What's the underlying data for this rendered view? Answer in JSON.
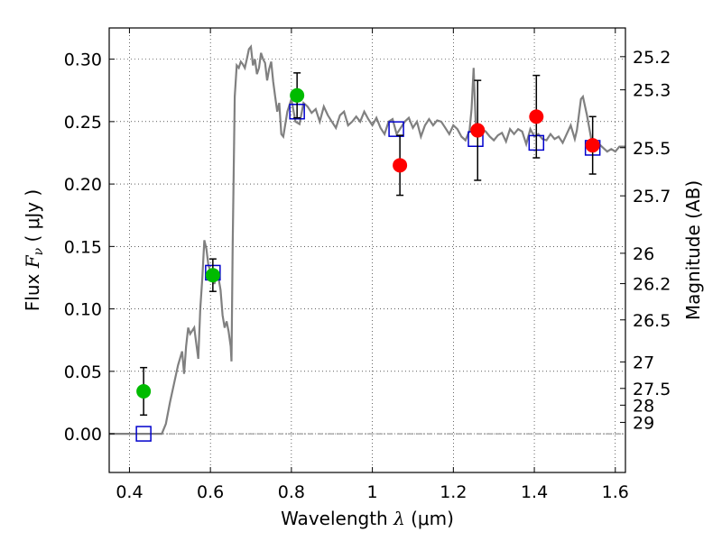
{
  "chart_data": {
    "type": "scatter",
    "xlabel": {
      "prefix": "Wavelength  ",
      "symbol": "λ",
      "unit": " (μm)"
    },
    "ylabel": {
      "prefix": "Flux  ",
      "symbol": "F",
      "subscript": "ν",
      "unit": "  ( μJy )"
    },
    "y2label": "Magnitude (AB)",
    "xlim": [
      0.35,
      1.625
    ],
    "ylim": [
      -0.031,
      0.325
    ],
    "grid": true,
    "x_ticks": [
      {
        "value": 0.4,
        "label": "0.4"
      },
      {
        "value": 0.6,
        "label": "0.6"
      },
      {
        "value": 0.8,
        "label": "0.8"
      },
      {
        "value": 1.0,
        "label": "1"
      },
      {
        "value": 1.2,
        "label": "1.2"
      },
      {
        "value": 1.4,
        "label": "1.4"
      },
      {
        "value": 1.6,
        "label": "1.6"
      }
    ],
    "y_ticks": [
      {
        "value": 0.0,
        "label": "0.00"
      },
      {
        "value": 0.05,
        "label": "0.05"
      },
      {
        "value": 0.1,
        "label": "0.10"
      },
      {
        "value": 0.15,
        "label": "0.15"
      },
      {
        "value": 0.2,
        "label": "0.20"
      },
      {
        "value": 0.25,
        "label": "0.25"
      },
      {
        "value": 0.3,
        "label": "0.30"
      }
    ],
    "mag_ticks": [
      "25.2",
      "25.3",
      "25.5",
      "25.7",
      "26",
      "26.2",
      "26.5",
      "27",
      "27.5",
      "28",
      "29"
    ],
    "zero_point_jy": 3631,
    "series": [
      {
        "role": "template_spectrum",
        "type": "line",
        "color": "#808080",
        "x": [
          0.35,
          0.48,
          0.49,
          0.5,
          0.51,
          0.52,
          0.53,
          0.535,
          0.54,
          0.545,
          0.55,
          0.56,
          0.57,
          0.575,
          0.58,
          0.585,
          0.59,
          0.595,
          0.6,
          0.605,
          0.61,
          0.615,
          0.62,
          0.625,
          0.63,
          0.635,
          0.64,
          0.645,
          0.65,
          0.652,
          0.655,
          0.66,
          0.665,
          0.67,
          0.675,
          0.68,
          0.685,
          0.69,
          0.695,
          0.7,
          0.705,
          0.71,
          0.715,
          0.72,
          0.725,
          0.73,
          0.735,
          0.74,
          0.745,
          0.75,
          0.755,
          0.76,
          0.765,
          0.77,
          0.775,
          0.78,
          0.79,
          0.8,
          0.81,
          0.82,
          0.83,
          0.84,
          0.85,
          0.86,
          0.87,
          0.88,
          0.89,
          0.9,
          0.91,
          0.92,
          0.93,
          0.94,
          0.95,
          0.96,
          0.97,
          0.98,
          0.99,
          1.0,
          1.01,
          1.02,
          1.03,
          1.04,
          1.05,
          1.06,
          1.07,
          1.08,
          1.09,
          1.1,
          1.11,
          1.12,
          1.13,
          1.14,
          1.15,
          1.16,
          1.17,
          1.18,
          1.19,
          1.2,
          1.21,
          1.22,
          1.23,
          1.24,
          1.245,
          1.25,
          1.255,
          1.26,
          1.27,
          1.28,
          1.29,
          1.3,
          1.31,
          1.32,
          1.33,
          1.34,
          1.35,
          1.36,
          1.37,
          1.38,
          1.39,
          1.4,
          1.41,
          1.42,
          1.43,
          1.44,
          1.45,
          1.46,
          1.47,
          1.48,
          1.49,
          1.5,
          1.505,
          1.51,
          1.515,
          1.52,
          1.53,
          1.54,
          1.55,
          1.56,
          1.57,
          1.58,
          1.59,
          1.6,
          1.61,
          1.625
        ],
        "y": [
          0.0,
          0.0,
          0.008,
          0.025,
          0.04,
          0.055,
          0.066,
          0.048,
          0.07,
          0.085,
          0.08,
          0.085,
          0.06,
          0.1,
          0.125,
          0.155,
          0.148,
          0.135,
          0.13,
          0.125,
          0.12,
          0.13,
          0.125,
          0.115,
          0.095,
          0.085,
          0.09,
          0.082,
          0.07,
          0.058,
          0.15,
          0.27,
          0.295,
          0.293,
          0.298,
          0.296,
          0.293,
          0.3,
          0.308,
          0.31,
          0.295,
          0.3,
          0.288,
          0.293,
          0.305,
          0.3,
          0.297,
          0.283,
          0.292,
          0.298,
          0.282,
          0.27,
          0.258,
          0.265,
          0.24,
          0.238,
          0.258,
          0.268,
          0.25,
          0.248,
          0.265,
          0.262,
          0.257,
          0.26,
          0.25,
          0.262,
          0.255,
          0.25,
          0.245,
          0.255,
          0.258,
          0.247,
          0.25,
          0.254,
          0.25,
          0.258,
          0.252,
          0.247,
          0.253,
          0.245,
          0.24,
          0.25,
          0.252,
          0.24,
          0.245,
          0.25,
          0.253,
          0.245,
          0.25,
          0.238,
          0.247,
          0.252,
          0.247,
          0.251,
          0.25,
          0.245,
          0.24,
          0.247,
          0.244,
          0.238,
          0.235,
          0.243,
          0.26,
          0.293,
          0.25,
          0.24,
          0.244,
          0.242,
          0.238,
          0.235,
          0.239,
          0.241,
          0.234,
          0.244,
          0.24,
          0.244,
          0.242,
          0.232,
          0.244,
          0.238,
          0.24,
          0.236,
          0.235,
          0.24,
          0.236,
          0.238,
          0.233,
          0.24,
          0.247,
          0.236,
          0.243,
          0.255,
          0.268,
          0.27,
          0.255,
          0.237,
          0.23,
          0.232,
          0.229,
          0.226,
          0.228,
          0.226,
          0.23,
          0.23
        ]
      },
      {
        "role": "synthetic_photometry",
        "type": "scatter",
        "marker": "square",
        "color": "#0000cc",
        "x": [
          0.435,
          0.606,
          0.814,
          1.059,
          1.255,
          1.405,
          1.544
        ],
        "y": [
          0.0,
          0.129,
          0.258,
          0.244,
          0.236,
          0.233,
          0.229
        ]
      },
      {
        "role": "photometry_green",
        "type": "scatter",
        "marker": "circle",
        "color": "#00bb00",
        "x": [
          0.435,
          0.606,
          0.814
        ],
        "y": [
          0.034,
          0.127,
          0.271
        ],
        "yerr": [
          0.019,
          0.013,
          0.018
        ]
      },
      {
        "role": "photometry_red",
        "type": "scatter",
        "marker": "circle",
        "color": "#ff0000",
        "x": [
          1.068,
          1.26,
          1.405,
          1.544
        ],
        "y": [
          0.215,
          0.243,
          0.254,
          0.231
        ],
        "yerr": [
          0.024,
          0.04,
          0.033,
          0.023
        ]
      }
    ]
  }
}
